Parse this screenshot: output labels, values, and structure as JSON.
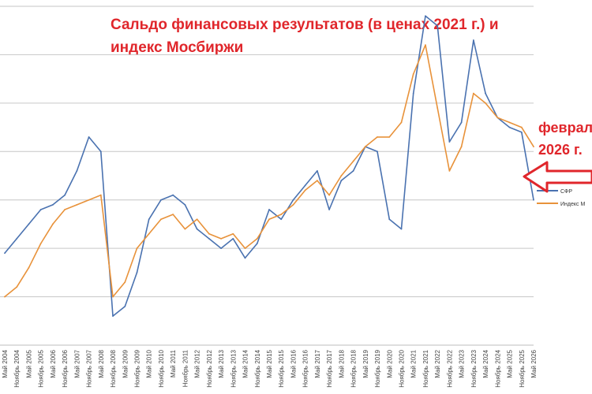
{
  "chart_data": {
    "type": "line",
    "title_line1": "Сальдо финансовых результатов (в ценах 2021 г.) и",
    "title_line2": "индекс Мосбиржи",
    "annotation_line1": "февраль",
    "annotation_line2": "2026 г.",
    "legend_placement": "right",
    "grid": true,
    "x": [
      "Май 2004",
      "Ноябрь 2004",
      "Май 2005",
      "Ноябрь 2005",
      "Май 2006",
      "Ноябрь 2006",
      "Май 2007",
      "Ноябрь 2007",
      "Май 2008",
      "Ноябрь 2008",
      "Май 2009",
      "Ноябрь 2009",
      "Май 2010",
      "Ноябрь 2010",
      "Май 2011",
      "Ноябрь 2011",
      "Май 2012",
      "Ноябрь 2012",
      "Май 2013",
      "Ноябрь 2013",
      "Май 2014",
      "Ноябрь 2014",
      "Май 2015",
      "Ноябрь 2015",
      "Май 2016",
      "Ноябрь 2016",
      "Май 2017",
      "Ноябрь 2017",
      "Май 2018",
      "Ноябрь 2018",
      "Май 2019",
      "Ноябрь 2019",
      "Май 2020",
      "Ноябрь 2020",
      "Май 2021",
      "Ноябрь 2021",
      "Май 2022",
      "Ноябрь 2022",
      "Май 2023",
      "Ноябрь 2023",
      "Май 2024",
      "Ноябрь 2024",
      "Май 2025",
      "Ноябрь 2025",
      "Май 2026"
    ],
    "series": [
      {
        "name": "СФР",
        "color": "#4a72b0",
        "values": [
          1.9,
          2.2,
          2.5,
          2.8,
          2.9,
          3.1,
          3.6,
          4.3,
          4.0,
          0.6,
          0.8,
          1.5,
          2.6,
          3.0,
          3.1,
          2.9,
          2.4,
          2.2,
          2.0,
          2.2,
          1.8,
          2.1,
          2.8,
          2.6,
          3.0,
          3.3,
          3.6,
          2.8,
          3.4,
          3.6,
          4.1,
          4.0,
          2.6,
          2.4,
          5.2,
          6.8,
          6.6,
          4.2,
          4.6,
          6.3,
          5.2,
          4.7,
          4.5,
          4.4,
          3.0
        ]
      },
      {
        "name": "Индекс М",
        "color": "#e8923a",
        "values": [
          1.0,
          1.2,
          1.6,
          2.1,
          2.5,
          2.8,
          2.9,
          3.0,
          3.1,
          1.0,
          1.3,
          2.0,
          2.3,
          2.6,
          2.7,
          2.4,
          2.6,
          2.3,
          2.2,
          2.3,
          2.0,
          2.2,
          2.6,
          2.7,
          2.9,
          3.2,
          3.4,
          3.1,
          3.5,
          3.8,
          4.1,
          4.3,
          4.3,
          4.6,
          5.6,
          6.2,
          4.9,
          3.6,
          4.1,
          5.2,
          5.0,
          4.7,
          4.6,
          4.5,
          4.1
        ]
      }
    ]
  }
}
